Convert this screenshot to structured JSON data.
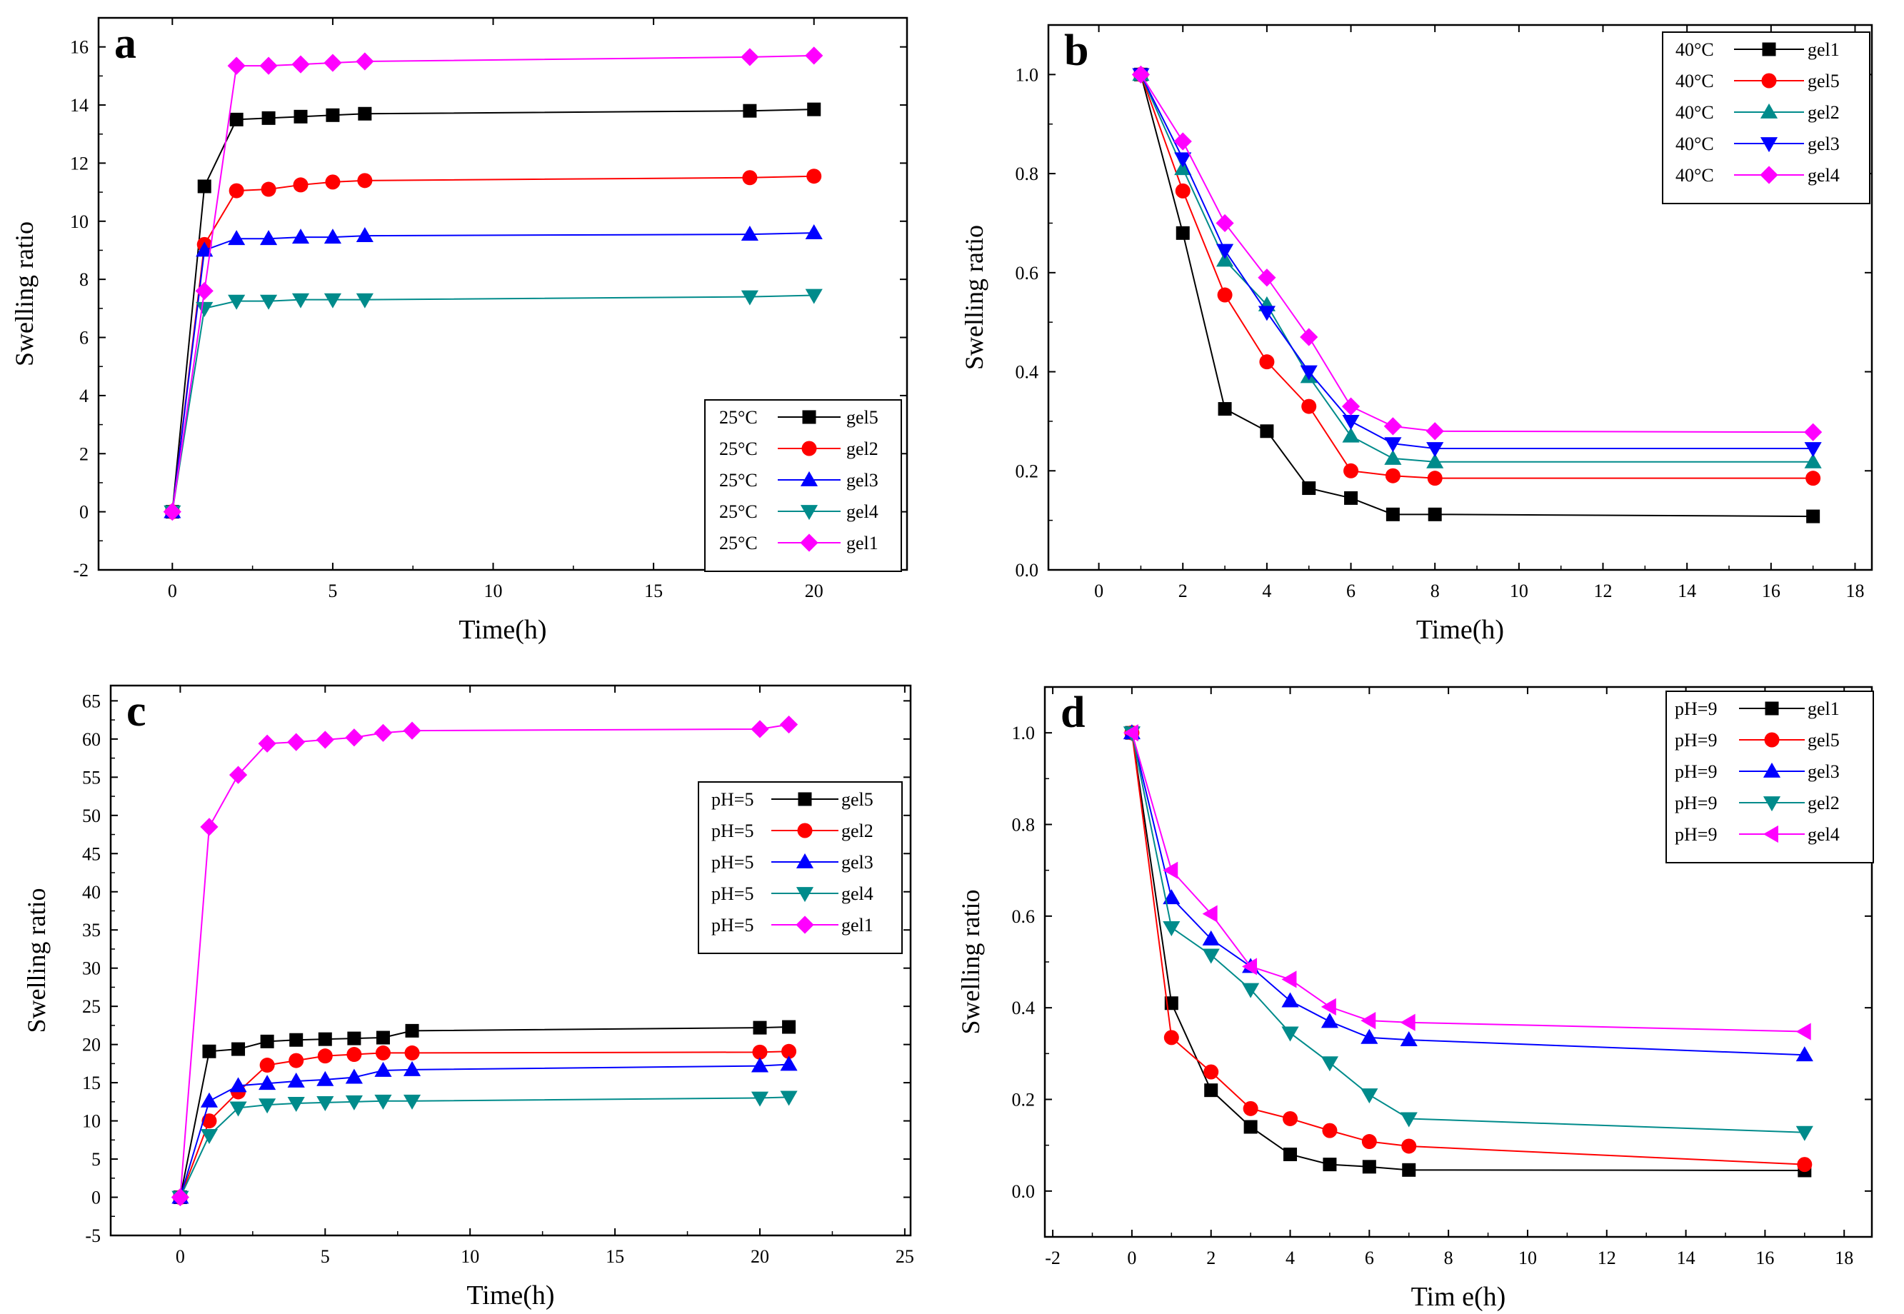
{
  "chart_data": [
    {
      "type": "line",
      "panel_label": "a",
      "xlabel": "Time(h)",
      "ylabel": "Swelling ratio",
      "xlim": [
        -2.3,
        22.9
      ],
      "ylim": [
        -2,
        17
      ],
      "xticks": [
        0,
        5,
        10,
        15,
        20
      ],
      "yticks": [
        -2,
        0,
        2,
        4,
        6,
        8,
        10,
        12,
        14,
        16
      ],
      "legend_position": "bottom-right",
      "series": [
        {
          "name": "gel5",
          "legend": {
            "condition": "25°C",
            "name": "gel5"
          },
          "color": "#000000",
          "marker": "square",
          "x": [
            0,
            1,
            2,
            3,
            4,
            5,
            6,
            18,
            20
          ],
          "y": [
            0,
            11.2,
            13.5,
            13.55,
            13.6,
            13.65,
            13.7,
            13.8,
            13.85
          ]
        },
        {
          "name": "gel2",
          "legend": {
            "condition": "25°C",
            "name": "gel2"
          },
          "color": "#ff0000",
          "marker": "circle",
          "x": [
            0,
            1,
            2,
            3,
            4,
            5,
            6,
            18,
            20
          ],
          "y": [
            0,
            9.2,
            11.05,
            11.1,
            11.25,
            11.35,
            11.4,
            11.5,
            11.55
          ]
        },
        {
          "name": "gel3",
          "legend": {
            "condition": "25°C",
            "name": "gel3"
          },
          "color": "#0000ff",
          "marker": "triangle-up",
          "x": [
            0,
            1,
            2,
            3,
            4,
            5,
            6,
            18,
            20
          ],
          "y": [
            0,
            9.0,
            9.4,
            9.4,
            9.45,
            9.45,
            9.5,
            9.55,
            9.6
          ]
        },
        {
          "name": "gel4",
          "legend": {
            "condition": "25°C",
            "name": "gel4"
          },
          "color": "#008b8b",
          "marker": "triangle-down",
          "x": [
            0,
            1,
            2,
            3,
            4,
            5,
            6,
            18,
            20
          ],
          "y": [
            0,
            7.0,
            7.25,
            7.25,
            7.3,
            7.3,
            7.3,
            7.4,
            7.45
          ]
        },
        {
          "name": "gel1",
          "legend": {
            "condition": "25°C",
            "name": "gel1"
          },
          "color": "#ff00ff",
          "marker": "diamond",
          "x": [
            0,
            1,
            2,
            3,
            4,
            5,
            6,
            18,
            20
          ],
          "y": [
            0,
            7.6,
            15.35,
            15.35,
            15.4,
            15.45,
            15.5,
            15.65,
            15.7
          ]
        }
      ]
    },
    {
      "type": "line",
      "panel_label": "b",
      "xlabel": "Time(h)",
      "ylabel": "Swelling ratio",
      "xlim": [
        -1.2,
        18.4
      ],
      "ylim": [
        0,
        1.1
      ],
      "xticks": [
        0,
        2,
        4,
        6,
        8,
        10,
        12,
        14,
        16,
        18
      ],
      "yticks": [
        0.0,
        0.2,
        0.4,
        0.6,
        0.8,
        1.0
      ],
      "ytick_labels": [
        "0.0",
        "0.2",
        "0.4",
        "0.6",
        "0.8",
        "1.0"
      ],
      "legend_position": "top-right",
      "series": [
        {
          "name": "gel1",
          "legend": {
            "condition": "40°C",
            "name": "gel1"
          },
          "color": "#000000",
          "marker": "square",
          "x": [
            1,
            2,
            3,
            4,
            5,
            6,
            7,
            8,
            17
          ],
          "y": [
            1.0,
            0.68,
            0.325,
            0.28,
            0.165,
            0.145,
            0.112,
            0.112,
            0.108
          ]
        },
        {
          "name": "gel5",
          "legend": {
            "condition": "40°C",
            "name": "gel5"
          },
          "color": "#ff0000",
          "marker": "circle",
          "x": [
            1,
            2,
            3,
            4,
            5,
            6,
            7,
            8,
            17
          ],
          "y": [
            1.0,
            0.765,
            0.555,
            0.42,
            0.33,
            0.2,
            0.19,
            0.185,
            0.185
          ]
        },
        {
          "name": "gel2",
          "legend": {
            "condition": "40°C",
            "name": "gel2"
          },
          "color": "#008b8b",
          "marker": "triangle-up",
          "x": [
            1,
            2,
            3,
            4,
            5,
            6,
            7,
            8,
            17
          ],
          "y": [
            1.0,
            0.81,
            0.625,
            0.535,
            0.39,
            0.27,
            0.225,
            0.218,
            0.218
          ]
        },
        {
          "name": "gel3",
          "legend": {
            "condition": "40°C",
            "name": "gel3"
          },
          "color": "#0000ff",
          "marker": "triangle-down",
          "x": [
            1,
            2,
            3,
            4,
            5,
            6,
            7,
            8,
            17
          ],
          "y": [
            1.0,
            0.83,
            0.645,
            0.52,
            0.4,
            0.3,
            0.255,
            0.245,
            0.245
          ]
        },
        {
          "name": "gel4",
          "legend": {
            "condition": "40°C",
            "name": "gel4"
          },
          "color": "#ff00ff",
          "marker": "diamond",
          "x": [
            1,
            2,
            3,
            4,
            5,
            6,
            7,
            8,
            17
          ],
          "y": [
            1.0,
            0.865,
            0.7,
            0.59,
            0.47,
            0.33,
            0.29,
            0.28,
            0.278
          ]
        }
      ]
    },
    {
      "type": "line",
      "panel_label": "c",
      "xlabel": "Time(h)",
      "ylabel": "Swelling ratio",
      "xlim": [
        -2.4,
        25.2
      ],
      "ylim": [
        -5,
        67
      ],
      "xticks": [
        0,
        5,
        10,
        15,
        20,
        25
      ],
      "yticks": [
        -5,
        0,
        5,
        10,
        15,
        20,
        25,
        30,
        35,
        40,
        45,
        50,
        55,
        60,
        65
      ],
      "legend_position": "center-right",
      "series": [
        {
          "name": "gel5",
          "legend": {
            "condition": "pH=5",
            "name": "gel5"
          },
          "color": "#000000",
          "marker": "square",
          "x": [
            0,
            1,
            2,
            3,
            4,
            5,
            6,
            7,
            8,
            20,
            21
          ],
          "y": [
            0,
            19.1,
            19.4,
            20.4,
            20.6,
            20.7,
            20.8,
            20.9,
            21.8,
            22.2,
            22.3
          ]
        },
        {
          "name": "gel2",
          "legend": {
            "condition": "pH=5",
            "name": "gel2"
          },
          "color": "#ff0000",
          "marker": "circle",
          "x": [
            0,
            1,
            2,
            3,
            4,
            5,
            6,
            7,
            8,
            20,
            21
          ],
          "y": [
            0,
            10.0,
            13.8,
            17.3,
            17.9,
            18.5,
            18.7,
            18.9,
            18.9,
            19.0,
            19.1
          ]
        },
        {
          "name": "gel3",
          "legend": {
            "condition": "pH=5",
            "name": "gel3"
          },
          "color": "#0000ff",
          "marker": "triangle-up",
          "x": [
            0,
            1,
            2,
            3,
            4,
            5,
            6,
            7,
            8,
            20,
            21
          ],
          "y": [
            0,
            12.6,
            14.6,
            14.9,
            15.2,
            15.4,
            15.7,
            16.6,
            16.7,
            17.2,
            17.4
          ]
        },
        {
          "name": "gel4",
          "legend": {
            "condition": "pH=5",
            "name": "gel4"
          },
          "color": "#008b8b",
          "marker": "triangle-down",
          "x": [
            0,
            1,
            2,
            3,
            4,
            5,
            6,
            7,
            8,
            20,
            21
          ],
          "y": [
            0,
            8.1,
            11.7,
            12.1,
            12.3,
            12.4,
            12.5,
            12.6,
            12.6,
            13.0,
            13.1
          ]
        },
        {
          "name": "gel1",
          "legend": {
            "condition": "pH=5",
            "name": "gel1"
          },
          "color": "#ff00ff",
          "marker": "diamond",
          "x": [
            0,
            1,
            2,
            3,
            4,
            5,
            6,
            7,
            8,
            20,
            21
          ],
          "y": [
            0,
            48.5,
            55.3,
            59.4,
            59.6,
            59.9,
            60.2,
            60.8,
            61.1,
            61.3,
            61.9
          ]
        }
      ]
    },
    {
      "type": "line",
      "panel_label": "d",
      "xlabel": "Tim e(h)",
      "ylabel": "Swelling ratio",
      "xlim": [
        -2.2,
        18.7
      ],
      "ylim": [
        -0.1,
        1.1
      ],
      "xticks": [
        -2,
        0,
        2,
        4,
        6,
        8,
        10,
        12,
        14,
        16,
        18
      ],
      "yticks": [
        0.0,
        0.2,
        0.4,
        0.6,
        0.8,
        1.0
      ],
      "ytick_labels": [
        "0.0",
        "0.2",
        "0.4",
        "0.6",
        "0.8",
        "1.0"
      ],
      "legend_position": "top-right",
      "series": [
        {
          "name": "gel1",
          "legend": {
            "condition": "pH=9",
            "name": "gel1"
          },
          "color": "#000000",
          "marker": "square",
          "x": [
            0,
            1,
            2,
            3,
            4,
            5,
            6,
            7,
            17
          ],
          "y": [
            1.0,
            0.41,
            0.22,
            0.14,
            0.08,
            0.058,
            0.053,
            0.046,
            0.045
          ]
        },
        {
          "name": "gel5",
          "legend": {
            "condition": "pH=9",
            "name": "gel5"
          },
          "color": "#ff0000",
          "marker": "circle",
          "x": [
            0,
            1,
            2,
            3,
            4,
            5,
            6,
            7,
            17
          ],
          "y": [
            1.0,
            0.335,
            0.26,
            0.18,
            0.158,
            0.132,
            0.108,
            0.098,
            0.058
          ]
        },
        {
          "name": "gel3",
          "legend": {
            "condition": "pH=9",
            "name": "gel3"
          },
          "color": "#0000ff",
          "marker": "triangle-up",
          "x": [
            0,
            1,
            2,
            3,
            4,
            5,
            6,
            7,
            17
          ],
          "y": [
            1.0,
            0.64,
            0.55,
            0.49,
            0.415,
            0.37,
            0.335,
            0.33,
            0.297
          ]
        },
        {
          "name": "gel2",
          "legend": {
            "condition": "pH=9",
            "name": "gel2"
          },
          "color": "#008b8b",
          "marker": "triangle-down",
          "x": [
            0,
            1,
            2,
            3,
            4,
            5,
            6,
            7,
            17
          ],
          "y": [
            1.0,
            0.575,
            0.515,
            0.44,
            0.345,
            0.28,
            0.21,
            0.158,
            0.128
          ]
        },
        {
          "name": "gel4",
          "legend": {
            "condition": "pH=9",
            "name": "gel4"
          },
          "color": "#ff00ff",
          "marker": "triangle-left",
          "x": [
            0,
            1,
            2,
            3,
            4,
            5,
            6,
            7,
            17
          ],
          "y": [
            1.0,
            0.7,
            0.605,
            0.49,
            0.462,
            0.402,
            0.372,
            0.368,
            0.348
          ]
        }
      ]
    }
  ]
}
